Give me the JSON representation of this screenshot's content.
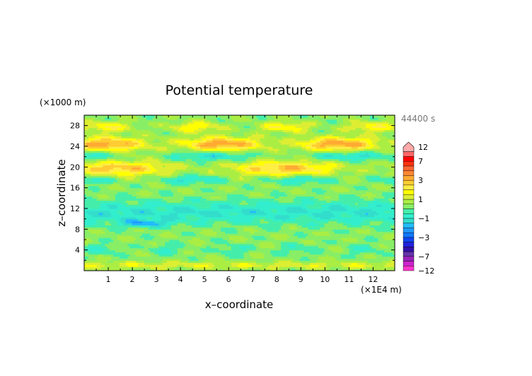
{
  "chart_data": {
    "type": "heatmap",
    "title": "Potential temperature",
    "xlabel": "x–coordinate",
    "ylabel": "z–coordinate",
    "x_unit": "(×1E4 m)",
    "y_unit": "(×1000 m)",
    "time_label": "44400 s",
    "x_ticks": [
      "1",
      "2",
      "3",
      "4",
      "5",
      "6",
      "7",
      "8",
      "9",
      "10",
      "11",
      "12"
    ],
    "y_ticks": [
      "4",
      "8",
      "12",
      "16",
      "20",
      "24",
      "28"
    ],
    "xlim": [
      0,
      12.9
    ],
    "ylim": [
      0,
      30
    ],
    "colorbar": {
      "labels": [
        "12",
        "7",
        "3",
        "1",
        "−1",
        "−3",
        "−7",
        "−12"
      ],
      "label_values": [
        12,
        7,
        3,
        1,
        -1,
        -3,
        -7,
        -12
      ],
      "levels": [
        -12,
        -10,
        -8,
        -7,
        -6,
        -5,
        -4,
        -3,
        -2.5,
        -2,
        -1.5,
        -1,
        -0.5,
        0,
        0.5,
        1,
        1.5,
        2,
        2.5,
        3,
        4,
        5,
        6,
        7,
        8,
        10,
        12
      ],
      "colors": [
        "#ff33cc",
        "#cc22cc",
        "#9922bb",
        "#6633aa",
        "#3311aa",
        "#2222dd",
        "#1144ee",
        "#1177ff",
        "#2299ff",
        "#22bbff",
        "#33ddcc",
        "#33eecc",
        "#44eeaa",
        "#88ee66",
        "#aaee44",
        "#ddee33",
        "#ffff00",
        "#ffee44",
        "#ffcc33",
        "#ffaa33",
        "#ff8833",
        "#ff6633",
        "#ff3311",
        "#ff0000",
        "#ff6666",
        "#ffaaaa"
      ]
    }
  }
}
